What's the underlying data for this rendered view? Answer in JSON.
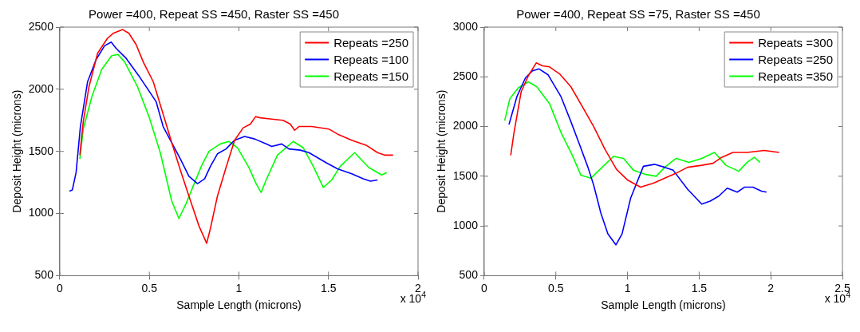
{
  "chart_data": [
    {
      "type": "line",
      "title": "Power =400, Repeat SS =450, Raster SS =450",
      "xlabel": "Sample Length (microns)",
      "ylabel": "Deposit Height (microns)",
      "annotations": [
        "x 10$^{4}$"
      ],
      "xlim": [
        0,
        2
      ],
      "xticks": [
        0,
        0.5,
        1,
        1.5,
        2
      ],
      "ylim": [
        500,
        2500
      ],
      "yticks": [
        500,
        1000,
        1500,
        2000,
        2500
      ],
      "legend": "top right",
      "marker": "none",
      "series": [
        {
          "name": "Repeats =250",
          "color": "#ff0000",
          "x": [
            0.112,
            0.131,
            0.163,
            0.211,
            0.266,
            0.298,
            0.351,
            0.386,
            0.426,
            0.466,
            0.522,
            0.577,
            0.625,
            0.673,
            0.721,
            0.777,
            0.82,
            0.841,
            0.88,
            0.928,
            0.976,
            1.024,
            1.064,
            1.093,
            1.12,
            1.183,
            1.247,
            1.287,
            1.311,
            1.335,
            1.407,
            1.502,
            1.55,
            1.63,
            1.71,
            1.774,
            1.813,
            1.861
          ],
          "values": [
            1470,
            1740,
            2020,
            2290,
            2410,
            2450,
            2480,
            2450,
            2360,
            2220,
            2060,
            1800,
            1570,
            1350,
            1140,
            900,
            760,
            880,
            1140,
            1370,
            1590,
            1690,
            1720,
            1780,
            1770,
            1760,
            1750,
            1720,
            1670,
            1700,
            1700,
            1680,
            1640,
            1590,
            1550,
            1490,
            1470,
            1470
          ]
        },
        {
          "name": "Repeats =100",
          "color": "#0000ff",
          "x": [
            0.054,
            0.07,
            0.091,
            0.115,
            0.155,
            0.203,
            0.25,
            0.287,
            0.314,
            0.37,
            0.45,
            0.538,
            0.577,
            0.625,
            0.673,
            0.721,
            0.769,
            0.809,
            0.841,
            0.88,
            0.928,
            0.976,
            1.032,
            1.088,
            1.152,
            1.183,
            1.239,
            1.279,
            1.343,
            1.391,
            1.486,
            1.55,
            1.63,
            1.694,
            1.734,
            1.774
          ],
          "values": [
            1180,
            1190,
            1330,
            1700,
            2060,
            2240,
            2350,
            2380,
            2330,
            2250,
            2090,
            1900,
            1700,
            1570,
            1440,
            1300,
            1240,
            1280,
            1380,
            1480,
            1520,
            1590,
            1620,
            1600,
            1560,
            1540,
            1560,
            1520,
            1510,
            1490,
            1410,
            1360,
            1320,
            1280,
            1260,
            1270
          ]
        },
        {
          "name": "Repeats =150",
          "color": "#00ff00",
          "x": [
            0.112,
            0.131,
            0.179,
            0.234,
            0.29,
            0.325,
            0.362,
            0.434,
            0.498,
            0.561,
            0.625,
            0.665,
            0.705,
            0.753,
            0.793,
            0.833,
            0.896,
            0.944,
            0.992,
            1.056,
            1.096,
            1.124,
            1.152,
            1.215,
            1.303,
            1.359,
            1.415,
            1.471,
            1.518,
            1.566,
            1.646,
            1.726,
            1.797,
            1.825
          ],
          "values": [
            1440,
            1680,
            1940,
            2160,
            2270,
            2280,
            2220,
            2020,
            1780,
            1490,
            1100,
            960,
            1080,
            1250,
            1390,
            1500,
            1560,
            1580,
            1530,
            1370,
            1240,
            1170,
            1270,
            1470,
            1580,
            1530,
            1380,
            1210,
            1270,
            1380,
            1490,
            1370,
            1310,
            1330
          ]
        }
      ]
    },
    {
      "type": "line",
      "title": "Power =400, Repeat SS =75, Raster SS =450",
      "xlabel": "Sample Length (microns)",
      "ylabel": "Deposit Height (microns)",
      "annotations": [
        "x 10$^{4}$"
      ],
      "xlim": [
        0,
        2.5
      ],
      "xticks": [
        0,
        0.5,
        1,
        1.5,
        2,
        2.5
      ],
      "ylim": [
        500,
        3000
      ],
      "yticks": [
        500,
        1000,
        1500,
        2000,
        2500,
        3000
      ],
      "legend": "top right",
      "marker": "none",
      "series": [
        {
          "name": "Repeats =300",
          "color": "#ff0000",
          "x": [
            0.185,
            0.208,
            0.258,
            0.308,
            0.363,
            0.407,
            0.456,
            0.526,
            0.605,
            0.685,
            0.764,
            0.843,
            0.923,
            1.002,
            1.091,
            1.181,
            1.26,
            1.339,
            1.419,
            1.518,
            1.597,
            1.657,
            1.736,
            1.835,
            1.954,
            2.058
          ],
          "values": [
            1710,
            1940,
            2350,
            2510,
            2640,
            2610,
            2600,
            2530,
            2400,
            2200,
            2000,
            1770,
            1570,
            1460,
            1390,
            1430,
            1480,
            1530,
            1590,
            1610,
            1630,
            1690,
            1740,
            1740,
            1760,
            1740
          ]
        },
        {
          "name": "Repeats =250",
          "color": "#0000ff",
          "x": [
            0.173,
            0.228,
            0.288,
            0.337,
            0.383,
            0.446,
            0.536,
            0.605,
            0.665,
            0.724,
            0.764,
            0.814,
            0.863,
            0.919,
            0.962,
            1.022,
            1.111,
            1.191,
            1.26,
            1.319,
            1.419,
            1.518,
            1.577,
            1.637,
            1.696,
            1.766,
            1.816,
            1.875,
            1.935,
            1.97
          ],
          "values": [
            2020,
            2300,
            2490,
            2560,
            2580,
            2520,
            2300,
            2050,
            1820,
            1590,
            1410,
            1130,
            920,
            810,
            920,
            1280,
            1600,
            1620,
            1590,
            1560,
            1370,
            1220,
            1250,
            1300,
            1380,
            1340,
            1390,
            1390,
            1350,
            1340
          ]
        },
        {
          "name": "Repeats =350",
          "color": "#00ff00",
          "x": [
            0.143,
            0.179,
            0.238,
            0.308,
            0.367,
            0.456,
            0.536,
            0.615,
            0.675,
            0.744,
            0.823,
            0.903,
            0.972,
            1.042,
            1.121,
            1.2,
            1.26,
            1.339,
            1.429,
            1.518,
            1.607,
            1.687,
            1.776,
            1.835,
            1.885,
            1.925
          ],
          "values": [
            2060,
            2280,
            2390,
            2450,
            2400,
            2230,
            1940,
            1710,
            1510,
            1480,
            1590,
            1700,
            1680,
            1560,
            1520,
            1500,
            1590,
            1680,
            1640,
            1680,
            1740,
            1610,
            1550,
            1640,
            1690,
            1640
          ]
        }
      ]
    }
  ]
}
